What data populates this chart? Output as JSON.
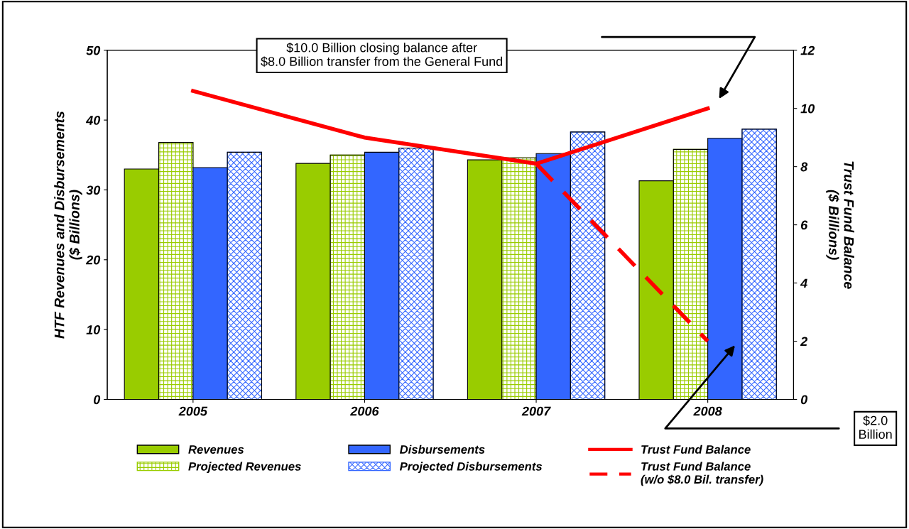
{
  "chart_data": {
    "type": "bar",
    "categories": [
      "2005",
      "2006",
      "2007",
      "2008"
    ],
    "ylabel": "HTF Revenues and Disbursements\n($ Billions)",
    "y2label": "Trust Fund Balance\n($ Billions)",
    "ylim": [
      0,
      50
    ],
    "yticks": [
      0,
      10,
      20,
      30,
      40,
      50
    ],
    "y2lim": [
      0,
      12
    ],
    "y2ticks": [
      0,
      2,
      4,
      6,
      8,
      10,
      12
    ],
    "legend": "bottom",
    "grid": false,
    "series": [
      {
        "name": "Revenues",
        "color": "#99cc00",
        "values": [
          33.0,
          33.8,
          34.3,
          31.3
        ]
      },
      {
        "name": "Projected Revenues",
        "color": "#99cc00",
        "values": [
          36.8,
          35.0,
          34.6,
          35.8
        ]
      },
      {
        "name": "Disbursements",
        "color": "#3366ff",
        "values": [
          33.2,
          35.4,
          35.2,
          37.4
        ]
      },
      {
        "name": "Projected Disbursements",
        "color": "#3366ff",
        "values": [
          35.4,
          36.0,
          38.3,
          38.7
        ]
      },
      {
        "name": "Trust Fund Balance",
        "type": "line",
        "axis": "y2",
        "color": "#ff0000",
        "line_style": "solid",
        "values": [
          10.6,
          9.0,
          8.1,
          10.0
        ]
      },
      {
        "name": "Trust Fund Balance\n(w/o $8.0 Bil. transfer)",
        "type": "line",
        "axis": "y2",
        "color": "#ff0000",
        "line_style": "dashed",
        "values": [
          null,
          null,
          8.1,
          2.0
        ]
      }
    ],
    "annotations": [
      "$10.0 Billion closing balance after\n$8.0 Billion transfer from the General Fund",
      "$2.0\nBillion"
    ]
  }
}
